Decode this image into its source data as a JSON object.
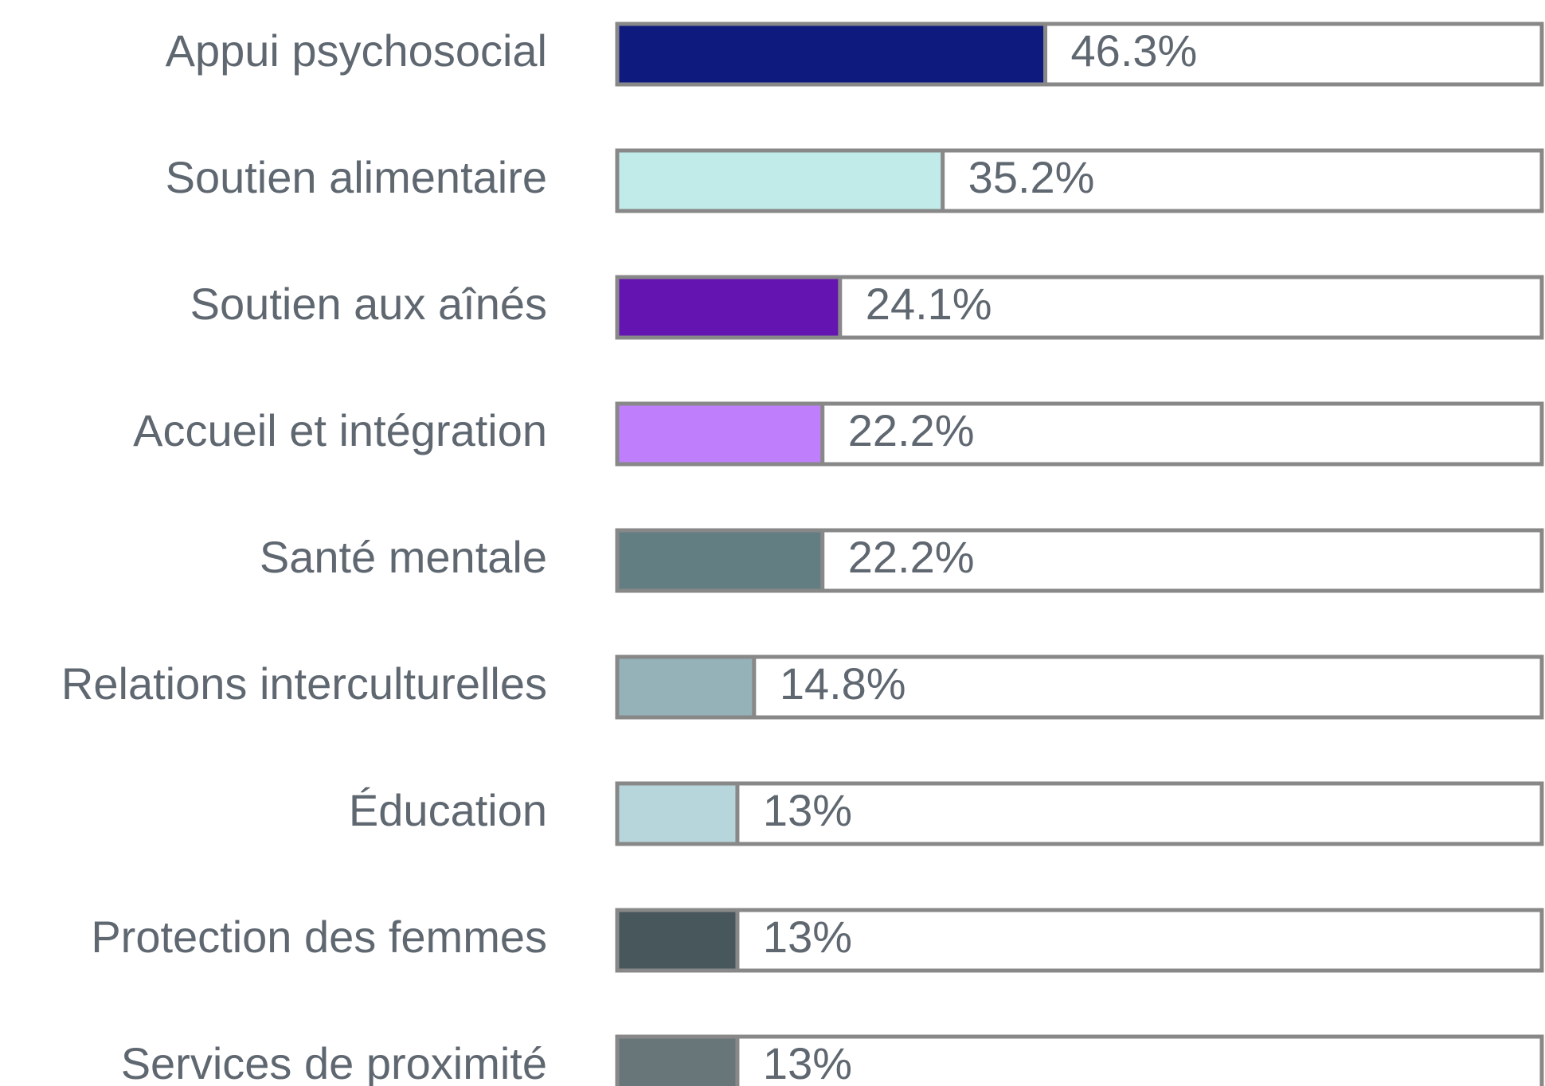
{
  "chart_data": {
    "type": "bar",
    "orientation": "horizontal",
    "categories": [
      "Appui psychosocial",
      "Soutien alimentaire",
      "Soutien aux aînés",
      "Accueil et intégration",
      "Santé mentale",
      "Relations interculturelles",
      "Éducation",
      "Protection des femmes",
      "Services de proximité"
    ],
    "values": [
      46.3,
      35.2,
      24.1,
      22.2,
      22.2,
      14.8,
      13,
      13,
      13
    ],
    "value_labels": [
      "46.3%",
      "35.2%",
      "24.1%",
      "22.2%",
      "22.2%",
      "14.8%",
      "13%",
      "13%",
      "13%"
    ],
    "colors": [
      "#0f1a7e",
      "#c0ebe8",
      "#6414b0",
      "#bf7ffc",
      "#627e83",
      "#94b2b8",
      "#b6d6dc",
      "#48575c",
      "#68767a"
    ],
    "xlim": [
      0,
      100
    ]
  }
}
